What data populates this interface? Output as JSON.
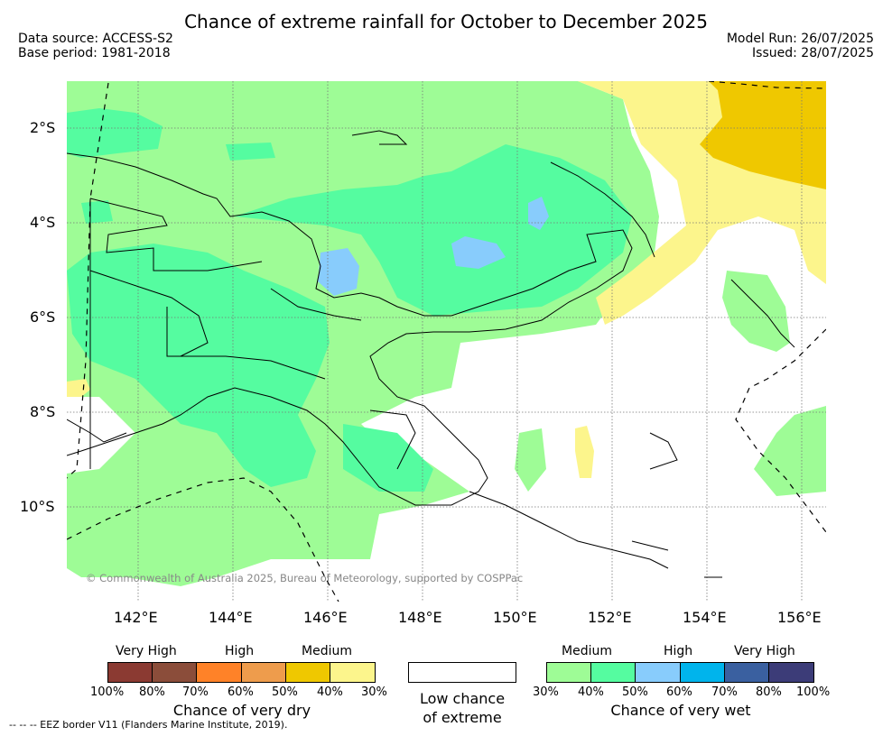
{
  "header": {
    "title": "Chance of extreme rainfall for October to December 2025",
    "data_source": "Data source: ACCESS-S2",
    "base_period": "Base period: 1981-2018",
    "model_run": "Model Run: 26/07/2025",
    "issued": "Issued: 28/07/2025"
  },
  "map": {
    "lat_labels": [
      "2°S",
      "4°S",
      "6°S",
      "8°S",
      "10°S"
    ],
    "lon_labels": [
      "142°E",
      "144°E",
      "146°E",
      "148°E",
      "150°E",
      "152°E",
      "154°E",
      "156°E"
    ],
    "copyright": "© Commonwealth of Australia 2025, Bureau of Meteorology, supported by COSPPac",
    "colors": {
      "wet_medium": "#9efc96",
      "wet_medium_high": "#55fca0",
      "wet_high": "#88ccfc",
      "dry_medium_low": "#fcf58c",
      "dry_medium": "#efc800",
      "no_extreme": "#ffffff"
    }
  },
  "legend_dry": {
    "headers": [
      "Very High",
      "High",
      "Medium"
    ],
    "ticks": [
      "100%",
      "80%",
      "70%",
      "60%",
      "50%",
      "40%",
      "30%"
    ],
    "caption": "Chance of very dry",
    "colors": [
      "#8b3a32",
      "#8b4d3a",
      "#ff8228",
      "#ee9c4c",
      "#efc800",
      "#fcf58c"
    ]
  },
  "legend_low": {
    "caption_line1": "Low chance",
    "caption_line2": "of extreme"
  },
  "legend_wet": {
    "headers": [
      "Medium",
      "High",
      "Very High"
    ],
    "ticks": [
      "30%",
      "40%",
      "50%",
      "60%",
      "70%",
      "80%",
      "100%"
    ],
    "caption": "Chance of very wet",
    "colors": [
      "#9efc96",
      "#55fca0",
      "#88ccfc",
      "#00b4ec",
      "#3a60a0",
      "#3c3c78"
    ]
  },
  "footnote": "-- -- -- EEZ border V11 (Flanders Marine Institute, 2019)."
}
